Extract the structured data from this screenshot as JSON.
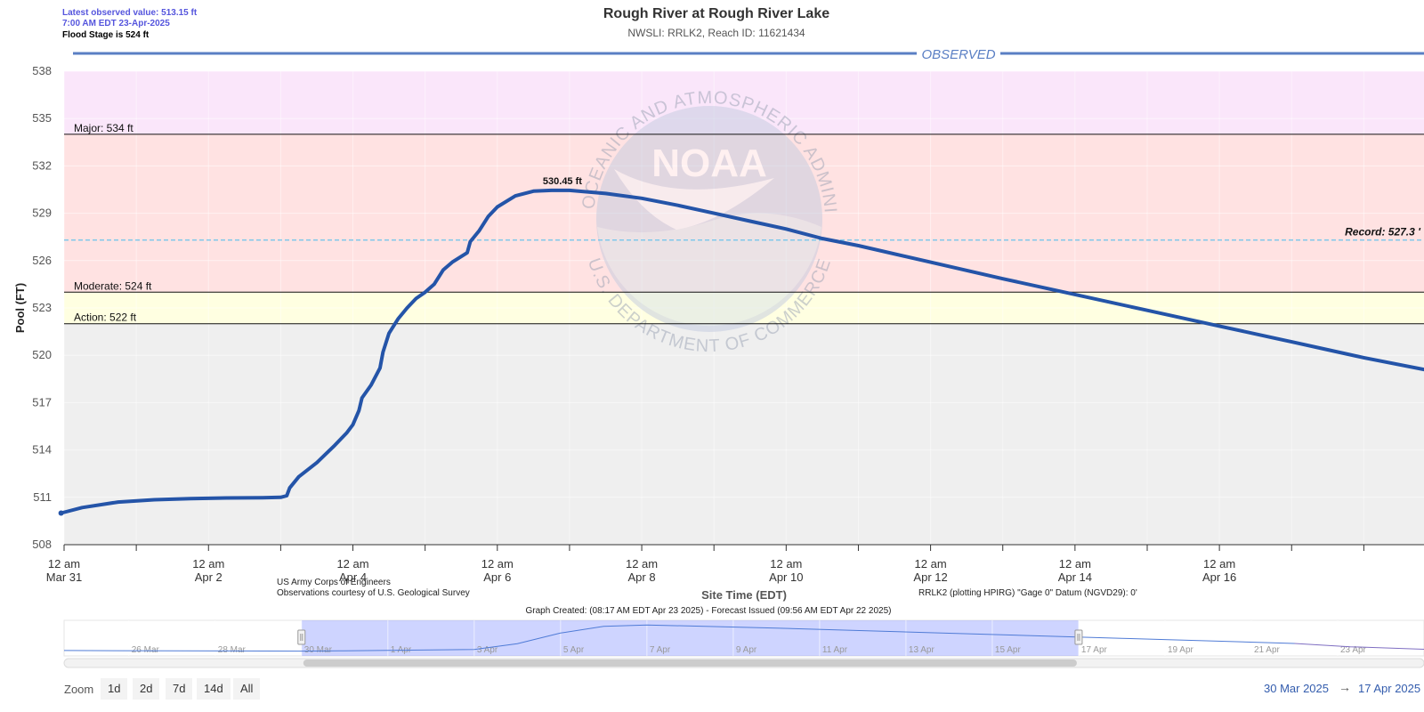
{
  "header": {
    "latest_observed": "Latest observed value: 513.15 ft",
    "latest_time": "7:00 AM EDT 23-Apr-2025",
    "flood_stage_note": "Flood Stage is 524 ft"
  },
  "chart_data": {
    "type": "line",
    "title": "Rough River at Rough River Lake",
    "subtitle": "NWSLI: RRLK2, Reach ID: 11621434",
    "xlabel": "Site Time (EDT)",
    "ylabel": "Pool (FT)",
    "ylim": [
      508,
      538
    ],
    "yticks": [
      508,
      511,
      514,
      517,
      520,
      523,
      526,
      529,
      532,
      535,
      538
    ],
    "x_range": [
      "2025-03-31 00:00",
      "2025-04-18 20:00"
    ],
    "xticks": [
      {
        "x": "2025-03-31 00:00",
        "line1": "12 am",
        "line2": "Mar 31"
      },
      {
        "x": "2025-04-02 00:00",
        "line1": "12 am",
        "line2": "Apr 2"
      },
      {
        "x": "2025-04-04 00:00",
        "line1": "12 am",
        "line2": "Apr 4"
      },
      {
        "x": "2025-04-06 00:00",
        "line1": "12 am",
        "line2": "Apr 6"
      },
      {
        "x": "2025-04-08 00:00",
        "line1": "12 am",
        "line2": "Apr 8"
      },
      {
        "x": "2025-04-10 00:00",
        "line1": "12 am",
        "line2": "Apr 10"
      },
      {
        "x": "2025-04-12 00:00",
        "line1": "12 am",
        "line2": "Apr 12"
      },
      {
        "x": "2025-04-14 00:00",
        "line1": "12 am",
        "line2": "Apr 14"
      },
      {
        "x": "2025-04-16 00:00",
        "line1": "12 am",
        "line2": "Apr 16"
      }
    ],
    "grid": true,
    "legend": "none",
    "band_label": "OBSERVED",
    "bands": [
      {
        "name": "above-major",
        "from": 534,
        "to": 538,
        "color": "#fae6fa"
      },
      {
        "name": "major",
        "from": 524,
        "to": 534,
        "color": "#ffe2e2"
      },
      {
        "name": "moderate",
        "from": 522,
        "to": 524,
        "color": "#ffffe1"
      },
      {
        "name": "action",
        "from": 508,
        "to": 522,
        "color": "#efefef"
      }
    ],
    "thresholds": [
      {
        "label": "Major: 534 ft",
        "value": 534
      },
      {
        "label": "Moderate: 524 ft",
        "value": 524
      },
      {
        "label": "Action: 522 ft",
        "value": 522
      }
    ],
    "record": {
      "label": "Record: 527.3 '",
      "value": 527.3
    },
    "series": [
      {
        "color": "#2454a8",
        "points": [
          [
            "2025-03-30 23:00",
            510.0
          ],
          [
            "2025-03-31 06:00",
            510.35
          ],
          [
            "2025-03-31 18:00",
            510.7
          ],
          [
            "2025-04-01 06:00",
            510.85
          ],
          [
            "2025-04-01 18:00",
            510.92
          ],
          [
            "2025-04-02 06:00",
            510.96
          ],
          [
            "2025-04-02 18:00",
            510.98
          ],
          [
            "2025-04-03 00:00",
            511.0
          ],
          [
            "2025-04-03 02:00",
            511.1
          ],
          [
            "2025-04-03 03:00",
            511.6
          ],
          [
            "2025-04-03 06:00",
            512.3
          ],
          [
            "2025-04-03 12:00",
            513.2
          ],
          [
            "2025-04-03 18:00",
            514.3
          ],
          [
            "2025-04-03 22:00",
            515.1
          ],
          [
            "2025-04-04 00:00",
            515.6
          ],
          [
            "2025-04-04 02:00",
            516.5
          ],
          [
            "2025-04-04 03:00",
            517.3
          ],
          [
            "2025-04-04 06:00",
            518.1
          ],
          [
            "2025-04-04 09:00",
            519.2
          ],
          [
            "2025-04-04 10:00",
            520.2
          ],
          [
            "2025-04-04 12:00",
            521.4
          ],
          [
            "2025-04-04 15:00",
            522.3
          ],
          [
            "2025-04-04 18:00",
            523.0
          ],
          [
            "2025-04-04 21:00",
            523.6
          ],
          [
            "2025-04-05 00:00",
            524.0
          ],
          [
            "2025-04-05 03:00",
            524.5
          ],
          [
            "2025-04-05 06:00",
            525.4
          ],
          [
            "2025-04-05 09:00",
            525.9
          ],
          [
            "2025-04-05 14:00",
            526.5
          ],
          [
            "2025-04-05 15:00",
            527.2
          ],
          [
            "2025-04-05 18:00",
            527.9
          ],
          [
            "2025-04-05 21:00",
            528.8
          ],
          [
            "2025-04-06 00:00",
            529.4
          ],
          [
            "2025-04-06 06:00",
            530.1
          ],
          [
            "2025-04-06 12:00",
            530.4
          ],
          [
            "2025-04-06 18:00",
            530.45
          ],
          [
            "2025-04-07 00:00",
            530.45
          ],
          [
            "2025-04-07 12:00",
            530.25
          ],
          [
            "2025-04-08 00:00",
            529.95
          ],
          [
            "2025-04-08 12:00",
            529.5
          ],
          [
            "2025-04-09 00:00",
            529.0
          ],
          [
            "2025-04-09 12:00",
            528.5
          ],
          [
            "2025-04-10 00:00",
            528.0
          ],
          [
            "2025-04-10 12:00",
            527.4
          ],
          [
            "2025-04-11 00:00",
            526.95
          ],
          [
            "2025-04-12 00:00",
            525.9
          ],
          [
            "2025-04-13 00:00",
            524.85
          ],
          [
            "2025-04-14 00:00",
            523.85
          ],
          [
            "2025-04-15 00:00",
            522.85
          ],
          [
            "2025-04-16 00:00",
            521.85
          ],
          [
            "2025-04-17 00:00",
            520.85
          ],
          [
            "2025-04-17 12:00",
            520.35
          ],
          [
            "2025-04-18 00:00",
            519.85
          ],
          [
            "2025-04-18 20:00",
            519.1
          ]
        ]
      }
    ],
    "annotations": [
      {
        "text": "530.45 ft",
        "x": "2025-04-07 00:00",
        "y": 530.45
      }
    ]
  },
  "credits": {
    "usace": "US Army Corps of Engineers",
    "usgs": "Observations courtesy of U.S. Geological Survey",
    "datum": "RRLK2 (plotting HPIRG) \"Gage 0\" Datum (NGVD29): 0'",
    "created": "Graph Created: (08:17 AM EDT Apr 23 2025) - Forecast Issued (09:56 AM EDT Apr 22 2025)"
  },
  "watermark": {
    "ring_top": "NATIONAL OCEANIC AND ATMOSPHERIC ADMINISTRATION",
    "ring_bottom": "U.S. DEPARTMENT OF COMMERCE",
    "logo_text": "NOAA"
  },
  "navigator": {
    "x_range": [
      "2025-03-24 12:00",
      "2025-04-25 00:00"
    ],
    "selected": [
      "2025-03-30 00:00",
      "2025-04-17 00:00"
    ],
    "labels": [
      "26 Mar",
      "28 Mar",
      "30 Mar",
      "1 Apr",
      "3 Apr",
      "5 Apr",
      "7 Apr",
      "9 Apr",
      "11 Apr",
      "13 Apr",
      "15 Apr",
      "17 Apr",
      "19 Apr",
      "21 Apr",
      "23 Apr"
    ],
    "label_dates": [
      "2025-03-26",
      "2025-03-28",
      "2025-03-30",
      "2025-04-01",
      "2025-04-03",
      "2025-04-05",
      "2025-04-07",
      "2025-04-09",
      "2025-04-11",
      "2025-04-13",
      "2025-04-15",
      "2025-04-17",
      "2025-04-19",
      "2025-04-21",
      "2025-04-23"
    ],
    "series": [
      [
        "2025-03-24 12:00",
        510.2
      ],
      [
        "2025-03-27 00:00",
        509.9
      ],
      [
        "2025-03-30 00:00",
        509.7
      ],
      [
        "2025-03-31 00:00",
        510.0
      ],
      [
        "2025-04-03 00:00",
        511.0
      ],
      [
        "2025-04-04 00:00",
        515.6
      ],
      [
        "2025-04-05 00:00",
        524.0
      ],
      [
        "2025-04-06 00:00",
        529.4
      ],
      [
        "2025-04-07 00:00",
        530.45
      ],
      [
        "2025-04-10 00:00",
        528.0
      ],
      [
        "2025-04-14 00:00",
        523.85
      ],
      [
        "2025-04-18 00:00",
        519.85
      ],
      [
        "2025-04-22 00:00",
        515.8
      ],
      [
        "2025-04-23 07:00",
        513.15
      ],
      [
        "2025-04-25 00:00",
        511.2
      ]
    ]
  },
  "range_selector": {
    "zoom_label": "Zoom",
    "buttons": [
      "1d",
      "2d",
      "7d",
      "14d",
      "All"
    ],
    "from": "30 Mar 2025",
    "arrow": "→",
    "to": "17 Apr 2025"
  }
}
